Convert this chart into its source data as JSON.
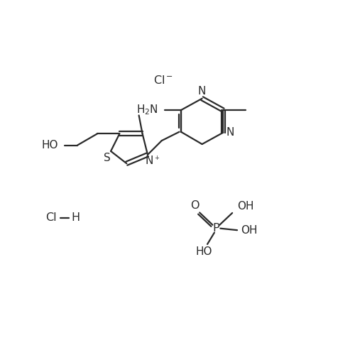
{
  "bg_color": "#ffffff",
  "line_color": "#2a2a2a",
  "lw": 1.6,
  "figsize": [
    5.0,
    5.0
  ],
  "dpi": 100,
  "xlim": [
    0,
    10
  ],
  "ylim": [
    0,
    10
  ]
}
